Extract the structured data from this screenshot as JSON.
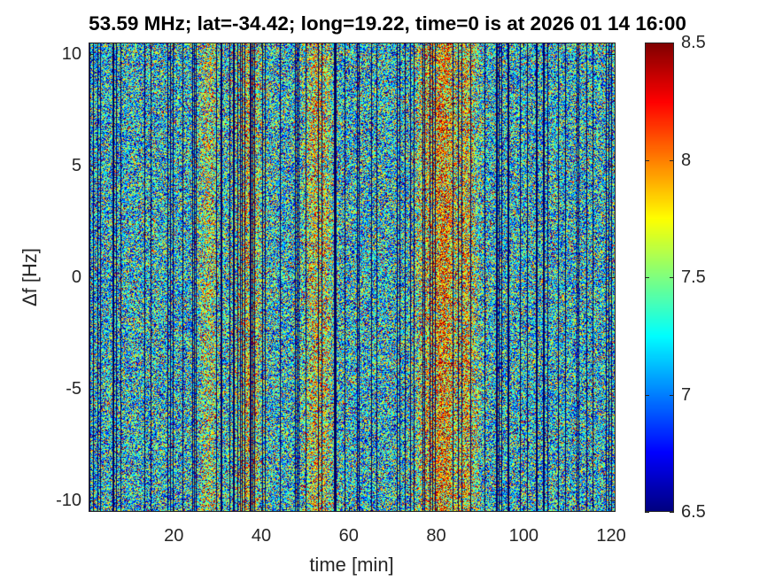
{
  "chart_data": {
    "type": "heatmap",
    "title": "53.59 MHz;  lat=-34.42; long=19.22, time=0 is at 2026 01 14 16:00",
    "xlabel": "time [min]",
    "ylabel": "Δf [Hz]",
    "xlim": [
      0.5,
      121
    ],
    "ylim": [
      -10.5,
      10.5
    ],
    "xticks": [
      "20",
      "40",
      "60",
      "80",
      "100",
      "120"
    ],
    "xtick_values": [
      20,
      40,
      60,
      80,
      100,
      120
    ],
    "yticks": [
      "10",
      "5",
      "0",
      "-5",
      "-10"
    ],
    "ytick_values": [
      10,
      5,
      0,
      -5,
      -10
    ],
    "colormap": "jet",
    "clim": [
      6.5,
      8.5
    ],
    "colorbar_ticks": [
      "8.5",
      "8",
      "7.5",
      "7",
      "6.5"
    ],
    "colorbar_tick_values": [
      8.5,
      8,
      7.5,
      7,
      6.5
    ],
    "baseline_level": 7.25,
    "noise_level": 0.5,
    "bright_bands": [
      {
        "time_min": 28,
        "width_min": 2.5,
        "level": 7.6
      },
      {
        "time_min": 37,
        "width_min": 3,
        "level": 7.75
      },
      {
        "time_min": 53,
        "width_min": 3,
        "level": 7.75
      },
      {
        "time_min": 78,
        "width_min": 3,
        "level": 7.7
      },
      {
        "time_min": 82,
        "width_min": 2.5,
        "level": 7.85
      },
      {
        "time_min": 87,
        "width_min": 2.5,
        "level": 7.75
      }
    ]
  }
}
